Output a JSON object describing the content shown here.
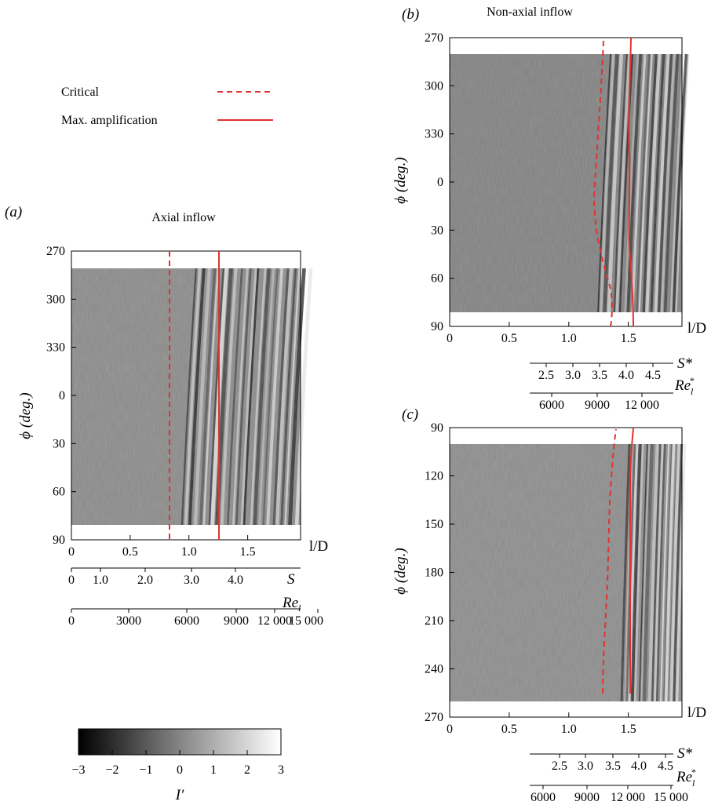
{
  "legend": {
    "critical_label": "Critical",
    "max_amp_label": "Max. amplification",
    "critical_color": "#e0332f",
    "max_amp_color": "#e0332f",
    "critical_style": "dashed",
    "max_amp_style": "solid"
  },
  "colorbar": {
    "label": "I′",
    "ticks": [
      "−3",
      "−2",
      "−1",
      "0",
      "1",
      "2",
      "3"
    ],
    "range": [
      -3,
      3
    ],
    "colormap": "grayscale black-to-white"
  },
  "chart_data": [
    {
      "type": "heatmap",
      "panel_label": "(a)",
      "title": "Axial inflow",
      "xlabel": "l/D",
      "ylabel": "ϕ (deg.)",
      "xlim": [
        0,
        1.95
      ],
      "x_ticks": [
        "0",
        "0.5",
        "1.0",
        "1.5"
      ],
      "y_ticks": [
        "270",
        "300",
        "330",
        "0",
        "30",
        "60",
        "90"
      ],
      "data_range_phi": [
        285,
        80
      ],
      "critical_x": 0.85,
      "max_amp_x": 1.27,
      "aux_axes": [
        {
          "label": "S",
          "ticks": [
            "0",
            "1.0",
            "2.0",
            "3.0",
            "4.0"
          ]
        },
        {
          "label": "Re_l",
          "ticks": [
            "0",
            "3000",
            "6000",
            "9000",
            "12 000",
            "15 000"
          ]
        }
      ]
    },
    {
      "type": "heatmap",
      "panel_label": "(b)",
      "title": "Non-axial inflow",
      "xlabel": "l/D",
      "ylabel": "ϕ (deg.)",
      "xlim": [
        0,
        1.95
      ],
      "x_ticks": [
        "0",
        "0.5",
        "1.0",
        "1.5"
      ],
      "y_ticks": [
        "270",
        "300",
        "330",
        "0",
        "30",
        "60",
        "90"
      ],
      "data_range_phi": [
        285,
        80
      ],
      "aux_axes": [
        {
          "label": "S*",
          "ticks": [
            "2.5",
            "3.0",
            "3.5",
            "4.0",
            "4.5"
          ]
        },
        {
          "label": "Re_l*",
          "ticks": [
            "6000",
            "9000",
            "12 000"
          ]
        }
      ]
    },
    {
      "type": "heatmap",
      "panel_label": "(c)",
      "title": "",
      "xlabel": "l/D",
      "ylabel": "ϕ (deg.)",
      "xlim": [
        0,
        1.95
      ],
      "x_ticks": [
        "0",
        "0.5",
        "1.0",
        "1.5"
      ],
      "y_ticks": [
        "90",
        "120",
        "150",
        "180",
        "210",
        "240",
        "270"
      ],
      "data_range_phi": [
        100,
        260
      ],
      "aux_axes": [
        {
          "label": "S*",
          "ticks": [
            "2.5",
            "3.0",
            "3.5",
            "4.0",
            "4.5"
          ]
        },
        {
          "label": "Re_l*",
          "ticks": [
            "6000",
            "9000",
            "12 000",
            "15 000"
          ]
        }
      ]
    }
  ]
}
